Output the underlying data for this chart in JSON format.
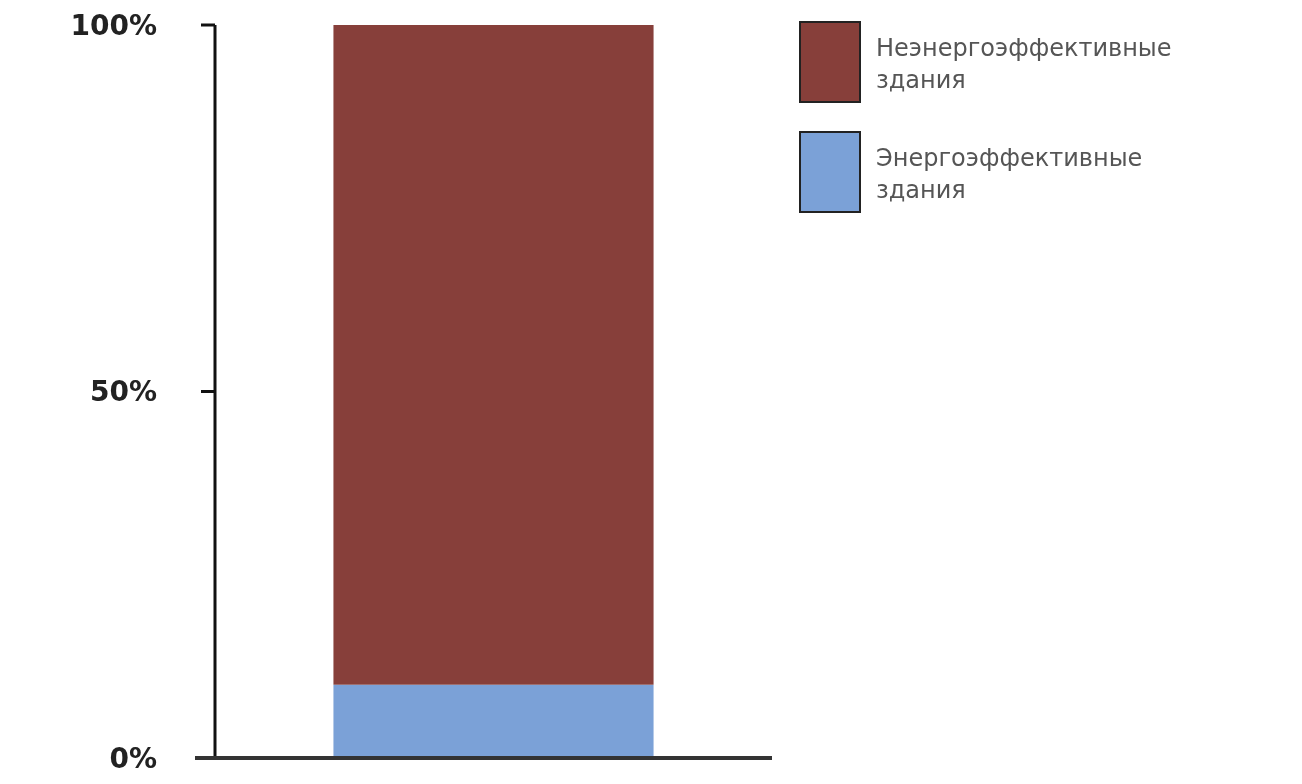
{
  "chart_data": {
    "type": "bar",
    "stacked": true,
    "categories": [
      null
    ],
    "series": [
      {
        "name": "Энергоэффективные здания",
        "color": "#7ba1d7",
        "values": [
          10
        ]
      },
      {
        "name": "Неэнергоэффективные здания",
        "color": "#873f3a",
        "values": [
          90
        ]
      }
    ],
    "ylim": [
      0,
      100
    ],
    "yticks": [
      {
        "value": 0,
        "label": "0%"
      },
      {
        "value": 50,
        "label": "50%"
      },
      {
        "value": 100,
        "label": "100%"
      }
    ],
    "grid": false,
    "legend": "top right"
  }
}
